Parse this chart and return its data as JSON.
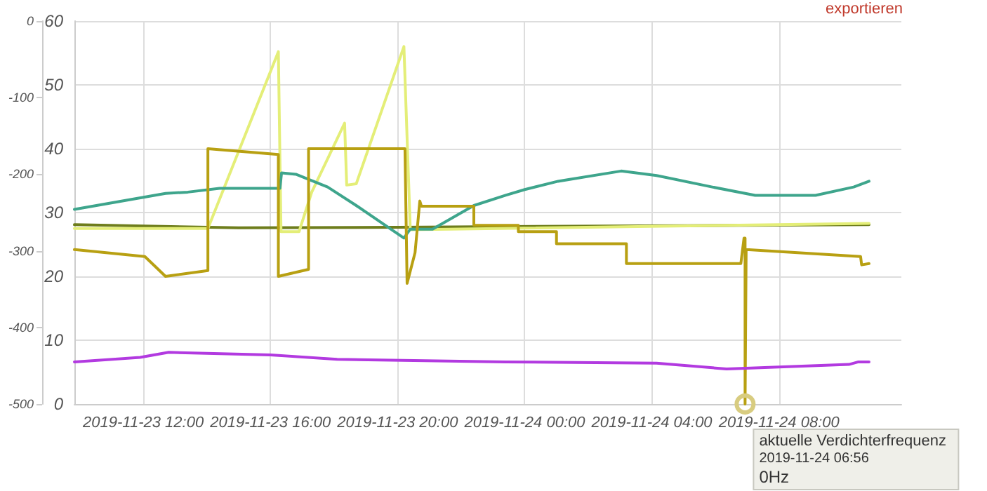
{
  "chart_data": {
    "type": "line",
    "xlim": [
      "2019-11-23T09:50",
      "2019-11-24T11:51"
    ],
    "xticks": [
      {
        "value": "2019-11-23T12:00",
        "label": "2019-11-23 12:00"
      },
      {
        "value": "2019-11-23T16:00",
        "label": "2019-11-23 16:00"
      },
      {
        "value": "2019-11-23T20:00",
        "label": "2019-11-23 20:00"
      },
      {
        "value": "2019-11-24T00:00",
        "label": "2019-11-24 00:00"
      },
      {
        "value": "2019-11-24T04:00",
        "label": "2019-11-24 04:00"
      },
      {
        "value": "2019-11-24T08:00",
        "label": "2019-11-24 08:00"
      }
    ],
    "ylim": [
      0,
      60
    ],
    "yticks": [
      0,
      10,
      20,
      30,
      40,
      50,
      60
    ],
    "y2lim": [
      -500,
      0
    ],
    "y2ticks": [
      0,
      -100,
      -200,
      -300,
      -400,
      -500
    ],
    "grid": true,
    "marker": "none",
    "line_style": "solid",
    "series": [
      {
        "color": "#6e7d1c",
        "x": [
          "2019-11-23T09:50",
          "2019-11-23T15:00",
          "2019-11-23T20:00",
          "2019-11-24T10:50"
        ],
        "values": [
          28.1,
          27.6,
          27.7,
          28.1
        ]
      },
      {
        "color": "#e4ee78",
        "x": [
          "2019-11-23T09:50",
          "2019-11-23T14:02",
          "2019-11-23T16:15",
          "2019-11-23T16:20",
          "2019-11-23T16:54",
          "2019-11-23T17:18",
          "2019-11-23T18:20",
          "2019-11-23T18:24",
          "2019-11-23T18:42",
          "2019-11-23T20:12",
          "2019-11-23T20:24",
          "2019-11-24T10:50"
        ],
        "values": [
          27.5,
          27.5,
          55.2,
          27,
          27,
          33.2,
          44,
          34.3,
          34.5,
          56,
          27.3,
          28.3
        ]
      },
      {
        "color": "#3ea58c",
        "x": [
          "2019-11-23T09:50",
          "2019-11-23T12:42",
          "2019-11-23T13:24",
          "2019-11-23T14:24",
          "2019-11-23T16:18",
          "2019-11-23T16:21",
          "2019-11-23T16:48",
          "2019-11-23T17:48",
          "2019-11-23T18:42",
          "2019-11-23T20:12",
          "2019-11-23T20:24",
          "2019-11-23T21:06",
          "2019-11-23T22:24",
          "2019-11-23T23:24",
          "2019-11-24T00:00",
          "2019-11-24T01:03",
          "2019-11-24T03:02",
          "2019-11-24T04:09",
          "2019-11-24T05:54",
          "2019-11-24T07:15",
          "2019-11-24T09:09",
          "2019-11-24T10:21",
          "2019-11-24T10:50"
        ],
        "values": [
          30.5,
          33,
          33.2,
          33.8,
          33.8,
          36.2,
          36,
          34,
          31.1,
          26,
          27.4,
          27.4,
          31.1,
          32.7,
          33.6,
          34.9,
          36.5,
          35.8,
          34,
          32.7,
          32.7,
          34,
          34.9
        ]
      },
      {
        "color": "#b8a012",
        "x": [
          "2019-11-23T09:50",
          "2019-11-23T12:03",
          "2019-11-23T12:42",
          "2019-11-23T14:02",
          "2019-11-23T14:02",
          "2019-11-23T16:15",
          "2019-11-23T16:15",
          "2019-11-23T17:12",
          "2019-11-23T17:12",
          "2019-11-23T20:14",
          "2019-11-23T20:18",
          "2019-11-23T20:33",
          "2019-11-23T20:42",
          "2019-11-23T20:45",
          "2019-11-23T22:24",
          "2019-11-23T22:24",
          "2019-11-23T23:48",
          "2019-11-23T23:48",
          "2019-11-24T01:00",
          "2019-11-24T01:00",
          "2019-11-24T03:12",
          "2019-11-24T03:12",
          "2019-11-24T06:48",
          "2019-11-24T06:54",
          "2019-11-24T06:56",
          "2019-11-24T06:56",
          "2019-11-24T06:58",
          "2019-11-24T10:34",
          "2019-11-24T10:36",
          "2019-11-24T10:50"
        ],
        "values": [
          24.2,
          23.1,
          20,
          20.9,
          40,
          39.1,
          20,
          21.1,
          40,
          40,
          18.9,
          23.7,
          31.8,
          31,
          31,
          28,
          28,
          27,
          27,
          25.1,
          25.1,
          22,
          22,
          26,
          26,
          0,
          24.2,
          23.1,
          21.8,
          22
        ]
      },
      {
        "color": "#b23ae0",
        "x": [
          "2019-11-23T09:50",
          "2019-11-23T11:54",
          "2019-11-23T12:48",
          "2019-11-23T16:00",
          "2019-11-23T18:06",
          "2019-11-23T23:24",
          "2019-11-24T04:09",
          "2019-11-24T06:21",
          "2019-11-24T07:24",
          "2019-11-24T10:12",
          "2019-11-24T10:30",
          "2019-11-24T10:50"
        ],
        "values": [
          6.6,
          7.3,
          8.1,
          7.7,
          7,
          6.6,
          6.4,
          5.5,
          5.7,
          6.2,
          6.6,
          6.6
        ]
      }
    ],
    "annotations": [
      "exportieren",
      {
        "text": "aktuelle Verdichterfrequenz\n2019-11-24 06:56\n0Hz",
        "x": "2019-11-24T06:56",
        "y": 0
      }
    ]
  }
}
